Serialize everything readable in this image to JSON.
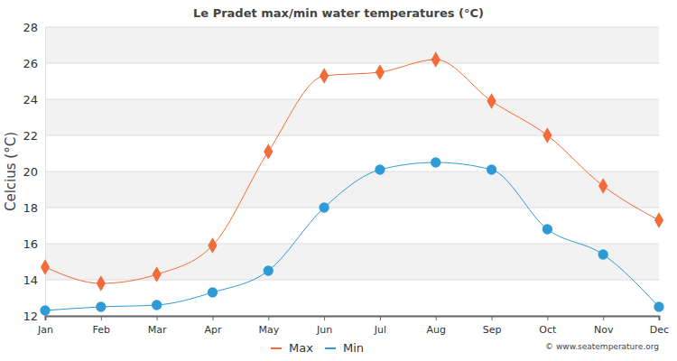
{
  "chart_data": {
    "type": "line",
    "title": "Le Pradet max/min water temperatures (°C)",
    "y_label": "Celcius (°C)",
    "footer": "© www.seatemperature.org",
    "categories": [
      "Jan",
      "Feb",
      "Mar",
      "Apr",
      "May",
      "Jun",
      "Jul",
      "Aug",
      "Sep",
      "Oct",
      "Nov",
      "Dec"
    ],
    "series": [
      {
        "name": "Max",
        "color": "#f26b38",
        "marker": "diamond",
        "values": [
          14.7,
          13.8,
          14.3,
          15.9,
          21.1,
          25.3,
          25.5,
          26.2,
          23.9,
          22.0,
          19.2,
          17.3
        ]
      },
      {
        "name": "Min",
        "color": "#2e9bd6",
        "marker": "circle",
        "values": [
          12.3,
          12.5,
          12.6,
          13.3,
          14.5,
          18.0,
          20.1,
          20.5,
          20.1,
          16.8,
          15.4,
          12.5
        ]
      }
    ],
    "ylim": [
      12,
      28
    ],
    "yticks": [
      12,
      14,
      16,
      18,
      20,
      22,
      24,
      26,
      28
    ],
    "grid": true,
    "legend": "bottom"
  }
}
